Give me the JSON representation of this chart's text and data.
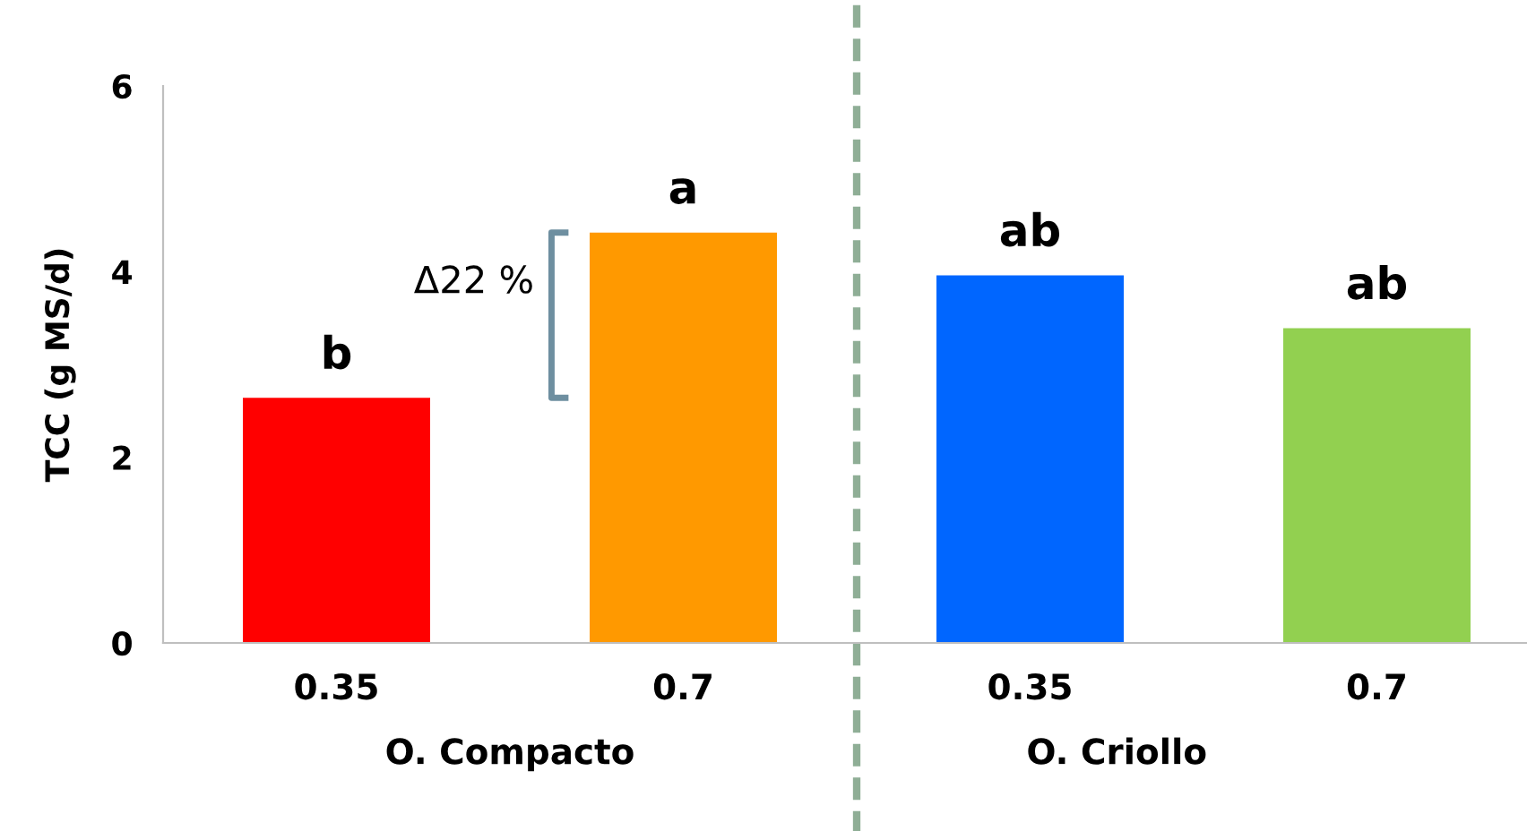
{
  "chart_data": {
    "type": "bar",
    "ylabel": "TCC (g MS/d)",
    "categories": [
      "0.35",
      "0.7",
      "0.35",
      "0.7"
    ],
    "values": [
      2.64,
      4.42,
      3.96,
      3.39
    ],
    "colors": [
      "#ff0000",
      "#ff9900",
      "#0066ff",
      "#92d050"
    ],
    "value_labels": [
      "b",
      "a",
      "ab",
      "ab"
    ],
    "ylim": [
      0,
      6
    ],
    "yticks": [
      0,
      2,
      4,
      6
    ],
    "grid": false,
    "annotations": [
      "Δ22 %",
      "O. Compacto",
      "O. Criollo"
    ]
  }
}
